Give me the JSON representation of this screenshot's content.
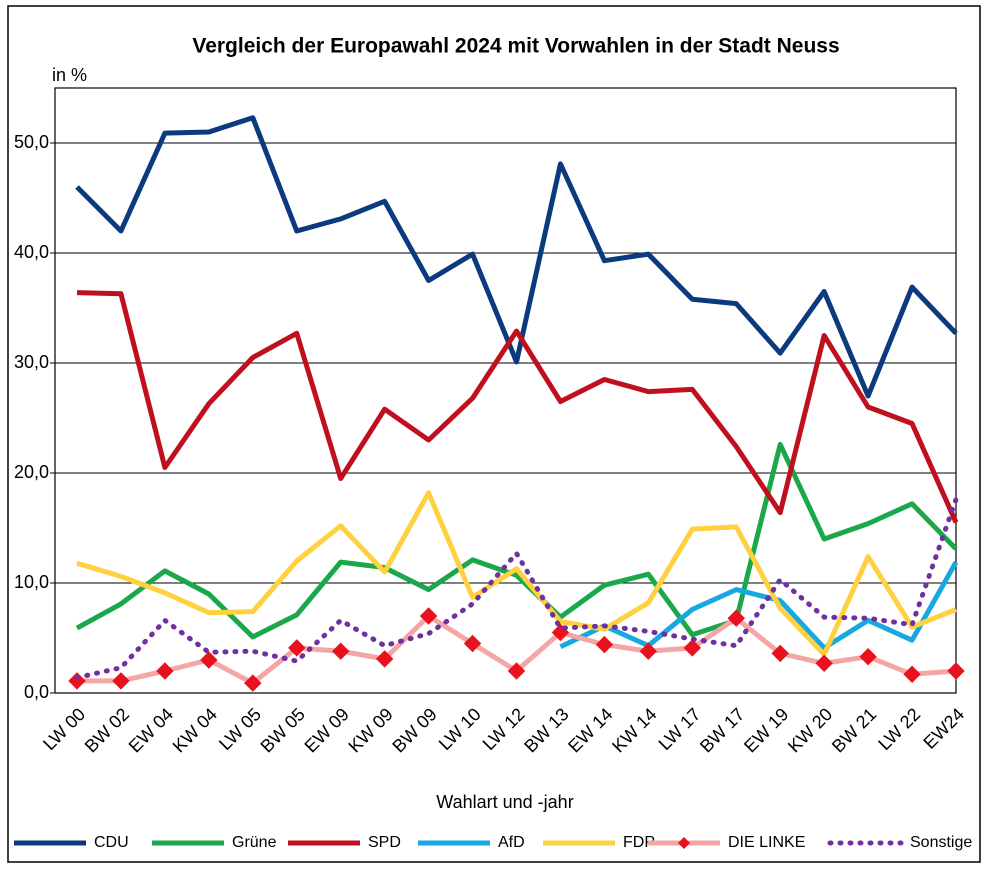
{
  "chart_data": {
    "type": "line",
    "title": "Vergleich der Europawahl 2024 mit Vorwahlen in der Stadt Neuss",
    "y_unit_label": "in %",
    "x_label": "Wahlart und -jahr",
    "categories": [
      "LW 00",
      "BW 02",
      "EW 04",
      "KW 04",
      "LW 05",
      "BW 05",
      "EW 09",
      "KW 09",
      "BW 09",
      "LW 10",
      "LW 12",
      "BW 13",
      "EW 14",
      "KW 14",
      "LW 17",
      "BW 17",
      "EW 19",
      "KW 20",
      "BW 21",
      "LW 22",
      "EW24"
    ],
    "ylim": [
      0,
      55
    ],
    "yticks": [
      {
        "value": 0,
        "label": "0,0"
      },
      {
        "value": 10,
        "label": "10,0"
      },
      {
        "value": 20,
        "label": "20,0"
      },
      {
        "value": 30,
        "label": "30,0"
      },
      {
        "value": 40,
        "label": "40,0"
      },
      {
        "value": 50,
        "label": "50,0"
      }
    ],
    "grid": true,
    "legend": "bottom",
    "series": [
      {
        "name": "CDU",
        "color": "#0b3a7e",
        "style": "solid",
        "values": [
          46.0,
          42.0,
          50.9,
          51.0,
          52.3,
          42.0,
          43.1,
          44.7,
          37.5,
          39.9,
          30.1,
          48.1,
          39.3,
          39.9,
          35.8,
          35.4,
          30.9,
          36.5,
          27.0,
          36.9,
          32.7
        ]
      },
      {
        "name": "Grüne",
        "color": "#1aa84a",
        "style": "solid",
        "values": [
          5.9,
          8.1,
          11.1,
          9.0,
          5.1,
          7.1,
          11.9,
          11.4,
          9.4,
          12.1,
          10.7,
          6.9,
          9.8,
          10.8,
          5.3,
          6.6,
          22.6,
          14.0,
          15.4,
          17.2,
          13.1
        ]
      },
      {
        "name": "SPD",
        "color": "#c0101e",
        "style": "solid",
        "values": [
          36.4,
          36.3,
          20.5,
          26.3,
          30.5,
          32.7,
          19.5,
          25.8,
          23.0,
          26.8,
          32.9,
          26.5,
          28.5,
          27.4,
          27.6,
          22.4,
          16.4,
          32.5,
          26.0,
          24.5,
          15.5
        ]
      },
      {
        "name": "AfD",
        "color": "#18a8e0",
        "style": "solid",
        "values": [
          null,
          null,
          null,
          null,
          null,
          null,
          null,
          null,
          null,
          null,
          null,
          4.2,
          6.1,
          4.3,
          7.6,
          9.4,
          8.4,
          4.1,
          6.6,
          4.8,
          11.9
        ]
      },
      {
        "name": "FDP",
        "color": "#ffd040",
        "style": "solid",
        "values": [
          11.8,
          10.6,
          9.1,
          7.3,
          7.4,
          12.0,
          15.2,
          11.0,
          18.2,
          8.7,
          11.3,
          6.5,
          5.8,
          8.2,
          14.9,
          15.1,
          7.7,
          3.5,
          12.4,
          6.0,
          7.6
        ]
      },
      {
        "name": "DIE LINKE",
        "color": "#f4a6a6",
        "marker": "diamond",
        "marker_color": "#e8121e",
        "style": "solid",
        "values": [
          1.1,
          1.1,
          2.0,
          3.0,
          0.9,
          4.1,
          3.8,
          3.1,
          7.0,
          4.5,
          2.0,
          5.5,
          4.4,
          3.8,
          4.1,
          6.8,
          3.6,
          2.7,
          3.3,
          1.7,
          2.0
        ]
      },
      {
        "name": "Sonstige",
        "color": "#7030a0",
        "style": "dotted",
        "values": [
          1.4,
          2.3,
          6.6,
          3.7,
          3.8,
          2.9,
          6.6,
          4.3,
          5.4,
          8.1,
          12.7,
          5.9,
          6.1,
          5.6,
          4.9,
          4.3,
          10.3,
          6.9,
          6.8,
          6.2,
          17.6
        ]
      }
    ]
  }
}
